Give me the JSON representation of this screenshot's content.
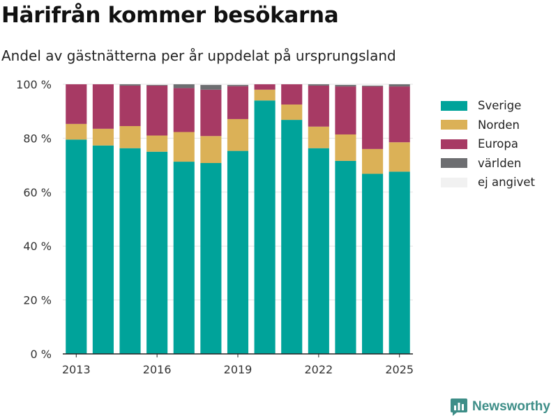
{
  "title": "Härifrån kommer besökarna",
  "subtitle": "Andel av gästnätterna per år uppdelat på ursprungsland",
  "brand": {
    "name": "Newsworthy",
    "icon": "newsworthy-logo-icon",
    "color": "#3e8e88"
  },
  "chart_data": {
    "type": "bar",
    "stacked": true,
    "categories": [
      "2013",
      "2014",
      "2015",
      "2016",
      "2017",
      "2018",
      "2019",
      "2020",
      "2021",
      "2022",
      "2023",
      "2024",
      "2025"
    ],
    "x_ticks": [
      "2013",
      "2016",
      "2019",
      "2022",
      "2025"
    ],
    "y_ticks": [
      "0 %",
      "20 %",
      "40 %",
      "60 %",
      "80 %",
      "100 %"
    ],
    "ylim": [
      0,
      100
    ],
    "grid": true,
    "legend_position": "right",
    "series": [
      {
        "name": "Sverige",
        "color": "#00a39a",
        "values": [
          79.5,
          77.3,
          76.3,
          75.0,
          71.3,
          70.8,
          75.3,
          94.0,
          86.8,
          76.3,
          71.6,
          66.8,
          67.6
        ]
      },
      {
        "name": "Norden",
        "color": "#dbb157",
        "values": [
          5.8,
          6.2,
          8.2,
          6.0,
          11.0,
          10.0,
          11.8,
          4.0,
          5.7,
          8.0,
          9.8,
          9.2,
          10.9
        ]
      },
      {
        "name": "Europa",
        "color": "#a73a64",
        "values": [
          14.7,
          16.5,
          15.0,
          18.5,
          16.3,
          17.2,
          12.2,
          2.0,
          7.5,
          15.2,
          17.8,
          23.2,
          20.7
        ]
      },
      {
        "name": "världen",
        "color": "#6d6e71",
        "values": [
          0.0,
          0.0,
          0.5,
          0.3,
          1.4,
          1.8,
          0.5,
          0.0,
          0.0,
          0.5,
          0.6,
          0.3,
          0.8
        ]
      },
      {
        "name": "ej angivet",
        "color": "#f1f1f1",
        "values": [
          0.0,
          0.0,
          0.0,
          0.2,
          0.0,
          0.2,
          0.2,
          0.0,
          0.0,
          0.0,
          0.2,
          0.5,
          0.0
        ]
      }
    ]
  }
}
